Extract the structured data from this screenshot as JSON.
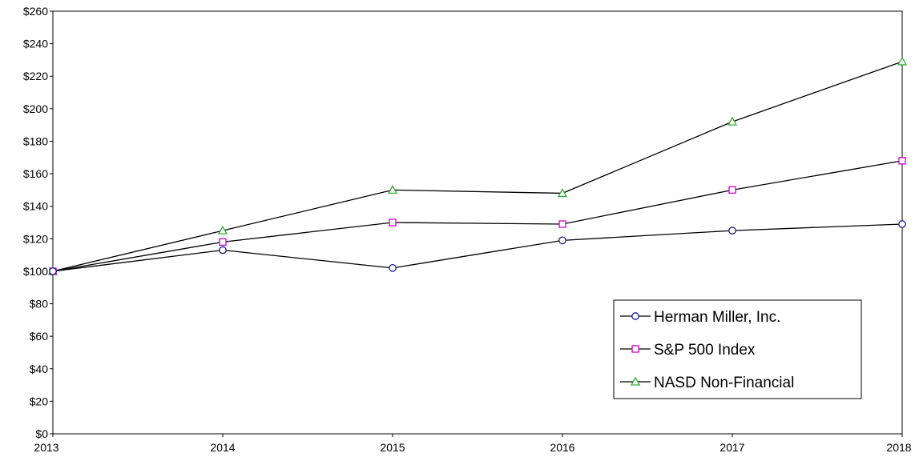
{
  "chart_data": {
    "type": "line",
    "title": "",
    "xlabel": "",
    "ylabel": "",
    "x": [
      "2013",
      "2014",
      "2015",
      "2016",
      "2017",
      "2018"
    ],
    "ylim": [
      0,
      260
    ],
    "y_ticks": [
      0,
      20,
      40,
      60,
      80,
      100,
      120,
      140,
      160,
      180,
      200,
      220,
      240,
      260
    ],
    "y_tick_labels": [
      "$0",
      "$20",
      "$40",
      "$60",
      "$80",
      "$100",
      "$120",
      "$140",
      "$160",
      "$180",
      "$200",
      "$220",
      "$240",
      "$260"
    ],
    "grid": false,
    "legend_position": "bottom-right",
    "series": [
      {
        "name": "Herman Miller, Inc.",
        "marker": "circle",
        "color": "#1a1a8c",
        "line_color": "#000000",
        "values": [
          100,
          113,
          102,
          119,
          125,
          129
        ]
      },
      {
        "name": "S&P 500 Index",
        "marker": "square",
        "color": "#cc00cc",
        "line_color": "#000000",
        "values": [
          100,
          118,
          130,
          129,
          150,
          168
        ]
      },
      {
        "name": "NASD Non-Financial",
        "marker": "triangle",
        "color": "#33aa33",
        "line_color": "#000000",
        "values": [
          100,
          125,
          150,
          148,
          192,
          229
        ]
      }
    ]
  }
}
